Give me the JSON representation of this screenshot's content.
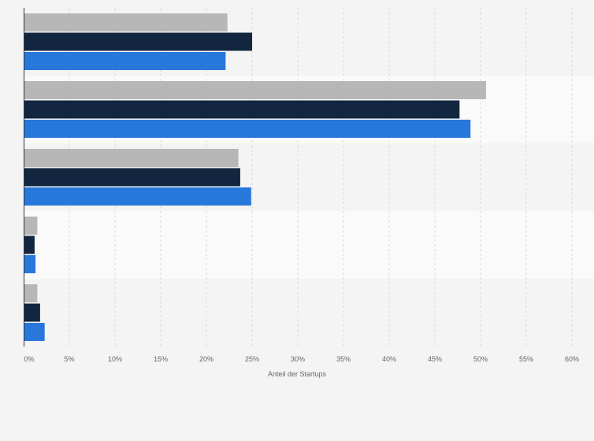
{
  "chart_data": {
    "type": "bar",
    "orientation": "horizontal",
    "xlabel": "Anteil der Startups",
    "ylabel": "",
    "xlim": [
      0,
      60
    ],
    "x_ticks": [
      "0%",
      "5%",
      "10%",
      "15%",
      "20%",
      "25%",
      "30%",
      "35%",
      "40%",
      "45%",
      "50%",
      "55%",
      "60%"
    ],
    "grid": "vertical",
    "categories": [
      "",
      "",
      "",
      "",
      ""
    ],
    "series": [
      {
        "color": "#b7b7b7",
        "values": [
          22.3,
          50.6,
          23.5,
          1.5,
          1.5
        ]
      },
      {
        "color": "#12263f",
        "values": [
          25.0,
          47.7,
          23.7,
          1.2,
          1.8
        ]
      },
      {
        "color": "#2878dc",
        "values": [
          22.1,
          48.9,
          24.9,
          1.3,
          2.3
        ]
      }
    ]
  }
}
